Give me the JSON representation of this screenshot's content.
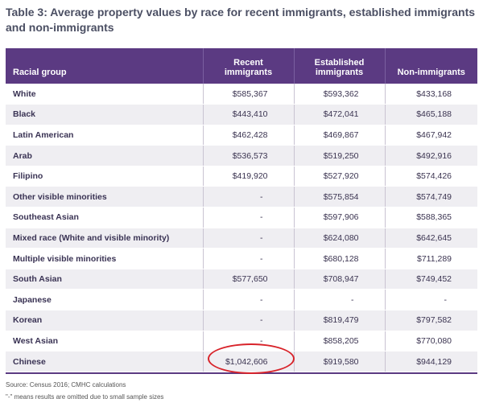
{
  "title": "Table 3: Average property values by race for recent immigrants, established immigrants and non-immigrants",
  "columns": [
    "Racial group",
    "Recent immigrants",
    "Established immigrants",
    "Non-immigrants"
  ],
  "rows": [
    {
      "group": "White",
      "recent": "$585,367",
      "established": "$593,362",
      "non": "$433,168"
    },
    {
      "group": "Black",
      "recent": "$443,410",
      "established": "$472,041",
      "non": "$465,188"
    },
    {
      "group": "Latin American",
      "recent": "$462,428",
      "established": "$469,867",
      "non": "$467,942"
    },
    {
      "group": "Arab",
      "recent": "$536,573",
      "established": "$519,250",
      "non": "$492,916"
    },
    {
      "group": "Filipino",
      "recent": "$419,920",
      "established": "$527,920",
      "non": "$574,426"
    },
    {
      "group": "Other visible minorities",
      "recent": "-",
      "established": "$575,854",
      "non": "$574,749"
    },
    {
      "group": "Southeast Asian",
      "recent": "-",
      "established": "$597,906",
      "non": "$588,365"
    },
    {
      "group": "Mixed race (White and visible minority)",
      "recent": "-",
      "established": "$624,080",
      "non": "$642,645"
    },
    {
      "group": "Multiple visible minorities",
      "recent": "-",
      "established": "$680,128",
      "non": "$711,289"
    },
    {
      "group": "South Asian",
      "recent": "$577,650",
      "established": "$708,947",
      "non": "$749,452"
    },
    {
      "group": "Japanese",
      "recent": "-",
      "established": "-",
      "non": "-"
    },
    {
      "group": "Korean",
      "recent": "-",
      "established": "$819,479",
      "non": "$797,582"
    },
    {
      "group": "West Asian",
      "recent": "-",
      "established": "$858,205",
      "non": "$770,080"
    },
    {
      "group": "Chinese",
      "recent": "$1,042,606",
      "established": "$919,580",
      "non": "$944,129"
    }
  ],
  "source": "Source: Census 2016; CMHC calculations",
  "omit_note": "\"-\" means results are omitted due to small sample sizes",
  "colors": {
    "header_bg": "#5b3a82",
    "highlight_circle": "#d8232a",
    "row_alt": "#efeef2"
  }
}
